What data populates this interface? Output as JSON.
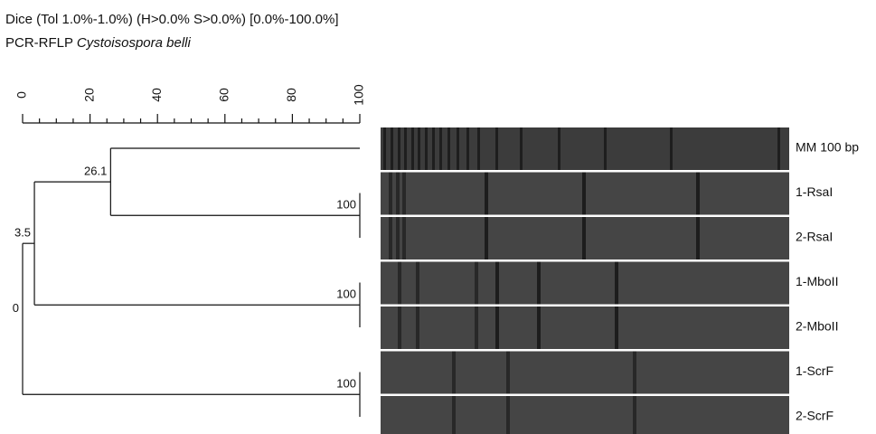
{
  "chart_data": {
    "type": "dendrogram",
    "title": "Dice (Tol 1.0%-1.0%) (H>0.0% S>0.0%) [0.0%-100.0%]",
    "subtitle": {
      "method": "PCR-RFLP",
      "species": "Cystoisospora belli"
    },
    "xlim": [
      0,
      100
    ],
    "xticks": [
      0,
      20,
      40,
      60,
      80,
      100
    ],
    "tree": {
      "value": 0,
      "children": [
        {
          "value": 3.5,
          "children": [
            {
              "value": 26.1,
              "children": [
                "MM 100 bp",
                {
                  "value": 100,
                  "children": [
                    "1-RsaI",
                    "2-RsaI"
                  ]
                }
              ]
            },
            {
              "value": 100,
              "children": [
                "1-MboII",
                "2-MboII"
              ]
            }
          ]
        },
        {
          "value": 100,
          "children": [
            "1-ScrF",
            "2-ScrF"
          ]
        }
      ]
    }
  }
}
